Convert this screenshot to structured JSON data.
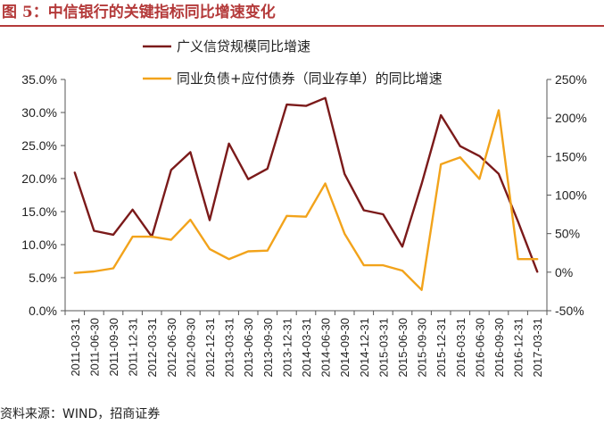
{
  "title": "图 5：中信银行的关键指标同比增速变化",
  "source": "资料来源：WIND，招商证券",
  "colors": {
    "series_loan": "#7b1a1a",
    "series_interbank": "#f2a31b",
    "title": "#b43a3a"
  },
  "chart_data": {
    "type": "line",
    "categories": [
      "2011-03-31",
      "2011-06-30",
      "2011-09-30",
      "2011-12-31",
      "2012-03-31",
      "2012-06-30",
      "2012-09-30",
      "2012-12-31",
      "2013-03-31",
      "2013-06-30",
      "2013-09-30",
      "2013-12-31",
      "2014-03-31",
      "2014-06-30",
      "2014-09-30",
      "2014-12-31",
      "2015-03-31",
      "2015-06-30",
      "2015-09-30",
      "2015-12-31",
      "2016-03-31",
      "2016-06-30",
      "2016-09-30",
      "2016-12-31",
      "2017-03-31"
    ],
    "series": [
      {
        "name": "广义信贷规模同比增速",
        "axis": "left",
        "color": "#7b1a1a",
        "values": [
          20.9,
          12.1,
          11.5,
          15.3,
          11.2,
          21.3,
          24.0,
          13.7,
          25.3,
          19.9,
          21.5,
          31.2,
          31.0,
          32.2,
          20.7,
          15.2,
          14.6,
          9.7,
          19.2,
          29.6,
          24.9,
          23.4,
          20.7,
          13.5,
          5.9
        ]
      },
      {
        "name": "同业负债+应付债券（同业存单）的同比增速",
        "axis": "right",
        "color": "#f2a31b",
        "values": [
          -1,
          1,
          5,
          46,
          46,
          42,
          68,
          30,
          17,
          27,
          28,
          73,
          72,
          115,
          50,
          9,
          9,
          2,
          -23,
          140,
          149,
          121,
          210,
          17,
          17
        ]
      }
    ],
    "y_left": {
      "min": 0,
      "max": 35,
      "step": 5,
      "tick_labels": [
        "0.0%",
        "5.0%",
        "10.0%",
        "15.0%",
        "20.0%",
        "25.0%",
        "30.0%",
        "35.0%"
      ]
    },
    "y_right": {
      "min": -50,
      "max": 250,
      "step": 50,
      "tick_labels": [
        "-50%",
        "0%",
        "50%",
        "100%",
        "150%",
        "200%",
        "250%"
      ]
    },
    "grid": false,
    "legend_position": "top-center"
  }
}
